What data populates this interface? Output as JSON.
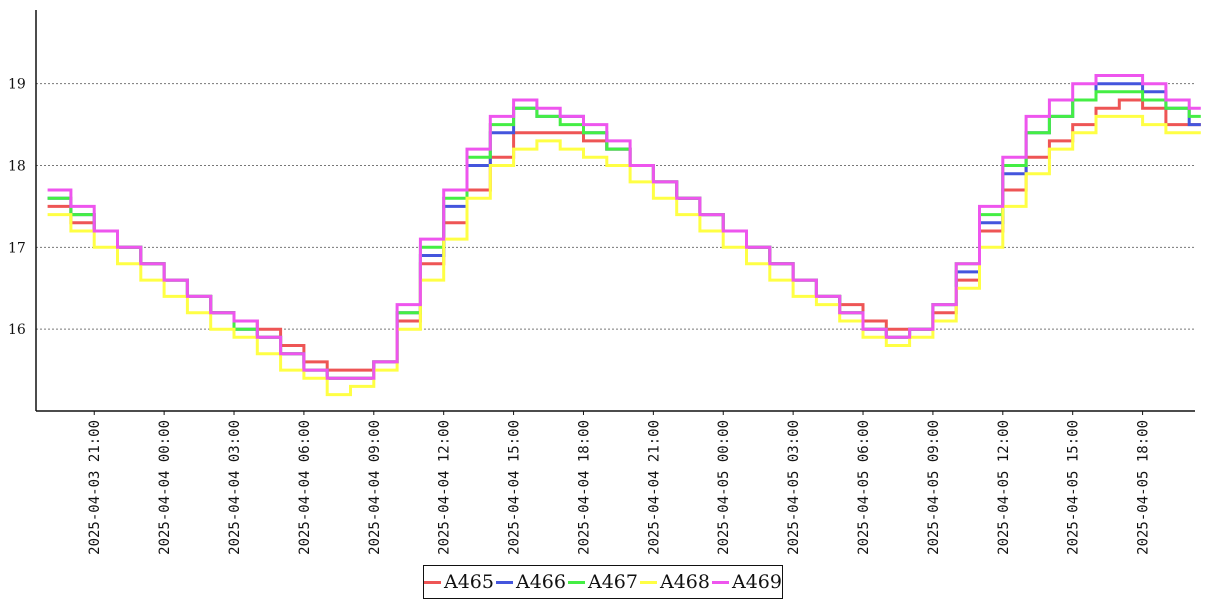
{
  "chart_data": {
    "type": "line",
    "title": "",
    "xlabel": "",
    "ylabel": "",
    "grid": "horizontal dotted",
    "legend_placement": "bottom-center",
    "ylim": [
      15.0,
      19.9
    ],
    "xlim": [
      "2025-04-03 18:30",
      "2025-04-05 20:15"
    ],
    "x_ticks": [
      "2025-04-03 21:00",
      "2025-04-04 00:00",
      "2025-04-04 03:00",
      "2025-04-04 06:00",
      "2025-04-04 09:00",
      "2025-04-04 12:00",
      "2025-04-04 15:00",
      "2025-04-04 18:00",
      "2025-04-04 21:00",
      "2025-04-05 00:00",
      "2025-04-05 03:00",
      "2025-04-05 06:00",
      "2025-04-05 09:00",
      "2025-04-05 12:00",
      "2025-04-05 15:00",
      "2025-04-05 18:00"
    ],
    "y_ticks": [
      16,
      17,
      18,
      19
    ],
    "x": [
      "2025-04-03 19:00",
      "2025-04-03 20:00",
      "2025-04-03 21:00",
      "2025-04-03 22:00",
      "2025-04-03 23:00",
      "2025-04-04 00:00",
      "2025-04-04 01:00",
      "2025-04-04 02:00",
      "2025-04-04 03:00",
      "2025-04-04 04:00",
      "2025-04-04 05:00",
      "2025-04-04 06:00",
      "2025-04-04 07:00",
      "2025-04-04 08:00",
      "2025-04-04 09:00",
      "2025-04-04 10:00",
      "2025-04-04 11:00",
      "2025-04-04 12:00",
      "2025-04-04 13:00",
      "2025-04-04 14:00",
      "2025-04-04 15:00",
      "2025-04-04 16:00",
      "2025-04-04 17:00",
      "2025-04-04 18:00",
      "2025-04-04 19:00",
      "2025-04-04 20:00",
      "2025-04-04 21:00",
      "2025-04-04 22:00",
      "2025-04-04 23:00",
      "2025-04-05 00:00",
      "2025-04-05 01:00",
      "2025-04-05 02:00",
      "2025-04-05 03:00",
      "2025-04-05 04:00",
      "2025-04-05 05:00",
      "2025-04-05 06:00",
      "2025-04-05 07:00",
      "2025-04-05 08:00",
      "2025-04-05 09:00",
      "2025-04-05 10:00",
      "2025-04-05 11:00",
      "2025-04-05 12:00",
      "2025-04-05 13:00",
      "2025-04-05 14:00",
      "2025-04-05 15:00",
      "2025-04-05 16:00",
      "2025-04-05 17:00",
      "2025-04-05 18:00",
      "2025-04-05 19:00",
      "2025-04-05 20:00"
    ],
    "series": [
      {
        "name": "A465",
        "color": "#ee5555",
        "values": [
          17.5,
          17.3,
          17.2,
          17.0,
          16.8,
          16.6,
          16.4,
          16.2,
          16.1,
          16.0,
          15.8,
          15.6,
          15.5,
          15.5,
          15.6,
          16.1,
          16.8,
          17.3,
          17.7,
          18.1,
          18.4,
          18.4,
          18.4,
          18.3,
          18.2,
          18.0,
          17.8,
          17.6,
          17.4,
          17.2,
          17.0,
          16.8,
          16.6,
          16.4,
          16.3,
          16.1,
          16.0,
          16.0,
          16.2,
          16.6,
          17.2,
          17.7,
          18.1,
          18.3,
          18.5,
          18.7,
          18.8,
          18.7,
          18.5,
          18.5
        ]
      },
      {
        "name": "A466",
        "color": "#4455dd",
        "values": [
          17.6,
          17.4,
          17.2,
          17.0,
          16.8,
          16.6,
          16.4,
          16.2,
          16.0,
          15.9,
          15.7,
          15.5,
          15.4,
          15.4,
          15.6,
          16.2,
          16.9,
          17.5,
          18.0,
          18.4,
          18.7,
          18.6,
          18.6,
          18.4,
          18.2,
          18.0,
          17.8,
          17.6,
          17.4,
          17.2,
          17.0,
          16.8,
          16.6,
          16.4,
          16.2,
          16.0,
          15.9,
          16.0,
          16.3,
          16.7,
          17.3,
          17.9,
          18.4,
          18.6,
          18.8,
          19.0,
          19.0,
          18.9,
          18.7,
          18.5
        ]
      },
      {
        "name": "A467",
        "color": "#44ee44",
        "values": [
          17.6,
          17.4,
          17.2,
          17.0,
          16.8,
          16.6,
          16.4,
          16.2,
          16.0,
          15.9,
          15.7,
          15.5,
          15.4,
          15.4,
          15.6,
          16.2,
          17.0,
          17.6,
          18.1,
          18.5,
          18.7,
          18.6,
          18.5,
          18.4,
          18.2,
          18.0,
          17.8,
          17.6,
          17.4,
          17.2,
          17.0,
          16.8,
          16.6,
          16.4,
          16.2,
          16.0,
          15.9,
          16.0,
          16.3,
          16.8,
          17.4,
          18.0,
          18.4,
          18.6,
          18.8,
          18.9,
          18.9,
          18.8,
          18.7,
          18.6
        ]
      },
      {
        "name": "A468",
        "color": "#ffff44",
        "values": [
          17.4,
          17.2,
          17.0,
          16.8,
          16.6,
          16.4,
          16.2,
          16.0,
          15.9,
          15.7,
          15.5,
          15.4,
          15.2,
          15.3,
          15.5,
          16.0,
          16.6,
          17.1,
          17.6,
          18.0,
          18.2,
          18.3,
          18.2,
          18.1,
          18.0,
          17.8,
          17.6,
          17.4,
          17.2,
          17.0,
          16.8,
          16.6,
          16.4,
          16.3,
          16.1,
          15.9,
          15.8,
          15.9,
          16.1,
          16.5,
          17.0,
          17.5,
          17.9,
          18.2,
          18.4,
          18.6,
          18.6,
          18.5,
          18.4,
          18.4
        ]
      },
      {
        "name": "A469",
        "color": "#ee55ee",
        "values": [
          17.7,
          17.5,
          17.2,
          17.0,
          16.8,
          16.6,
          16.4,
          16.2,
          16.1,
          15.9,
          15.7,
          15.5,
          15.4,
          15.4,
          15.6,
          16.3,
          17.1,
          17.7,
          18.2,
          18.6,
          18.8,
          18.7,
          18.6,
          18.5,
          18.3,
          18.0,
          17.8,
          17.6,
          17.4,
          17.2,
          17.0,
          16.8,
          16.6,
          16.4,
          16.2,
          16.0,
          15.9,
          16.0,
          16.3,
          16.8,
          17.5,
          18.1,
          18.6,
          18.8,
          19.0,
          19.1,
          19.1,
          19.0,
          18.8,
          18.7
        ]
      }
    ]
  }
}
